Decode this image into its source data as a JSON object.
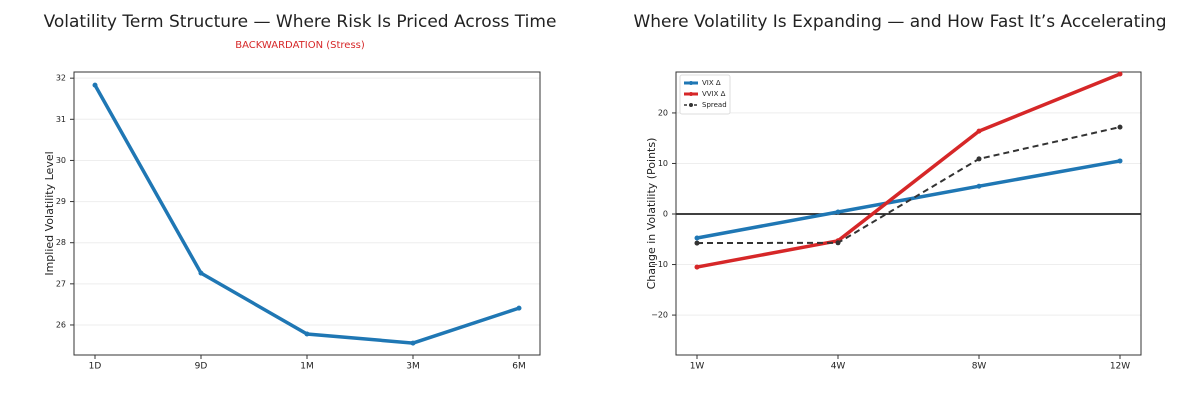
{
  "chart_data": [
    {
      "type": "line",
      "title": "Volatility Term Structure — Where Risk Is Priced Across Time",
      "subtitle": "BACKWARDATION (Stress)",
      "subtitle_color": "#d62728",
      "ylabel": "Implied Volatility Level",
      "categories": [
        "1D",
        "9D",
        "1M",
        "3M",
        "6M"
      ],
      "series": [
        {
          "color": "#1f77b4",
          "values": [
            31.83,
            27.26,
            25.78,
            25.56,
            26.41
          ]
        }
      ],
      "ylim": [
        25.27,
        32.15
      ],
      "yticks": [
        26,
        27,
        28,
        29,
        30,
        31,
        32
      ],
      "grid": true
    },
    {
      "type": "line",
      "title": "Where Volatility Is Expanding — and How Fast It’s Accelerating",
      "ylabel": "Change in Volatility (Points)",
      "categories": [
        "1W",
        "4W",
        "8W",
        "12W"
      ],
      "series": [
        {
          "name": "VIX Δ",
          "color": "#1f77b4",
          "values": [
            -4.75,
            0.4,
            5.5,
            10.5
          ]
        },
        {
          "name": "VVIX Δ",
          "color": "#d62728",
          "values": [
            -10.5,
            -5.3,
            16.4,
            27.7
          ]
        },
        {
          "name": "Spread",
          "color": "#333333",
          "dashed": true,
          "values": [
            -5.75,
            -5.7,
            10.9,
            17.2
          ]
        }
      ],
      "ylim": [
        -27.9,
        28.1
      ],
      "yticks": [
        {
          "value": -20,
          "label": "−20"
        },
        {
          "value": -10,
          "label": "−10"
        },
        0,
        10,
        20
      ],
      "grid": true,
      "zero_line": true,
      "legend": "upper left"
    }
  ]
}
